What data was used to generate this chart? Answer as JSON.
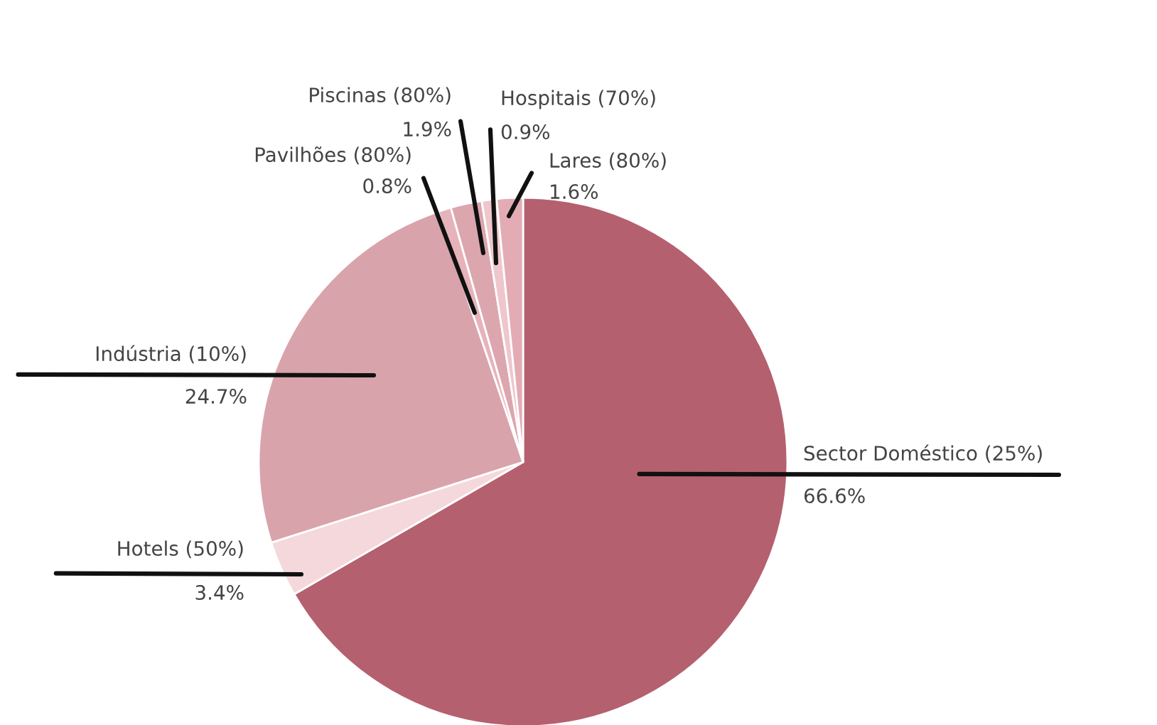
{
  "chart_data": {
    "type": "pie",
    "categories": [
      "Sector Doméstico (25%)",
      "Hotels (50%)",
      "Indústria (10%)",
      "Pavilhões (80%)",
      "Piscinas (80%)",
      "Hospitais (70%)",
      "Lares (80%)"
    ],
    "values": [
      66.6,
      3.4,
      24.7,
      0.8,
      1.9,
      0.9,
      1.6
    ],
    "value_labels": [
      "66.6%",
      "3.4%",
      "24.7%",
      "0.8%",
      "1.9%",
      "0.9%",
      "1.6%"
    ],
    "colors": [
      "#b5606f",
      "#f5d8dc",
      "#d9a3ab",
      "#e6b3ba",
      "#dca6ae",
      "#efc6cc",
      "#e3acb4"
    ],
    "legend": false
  }
}
